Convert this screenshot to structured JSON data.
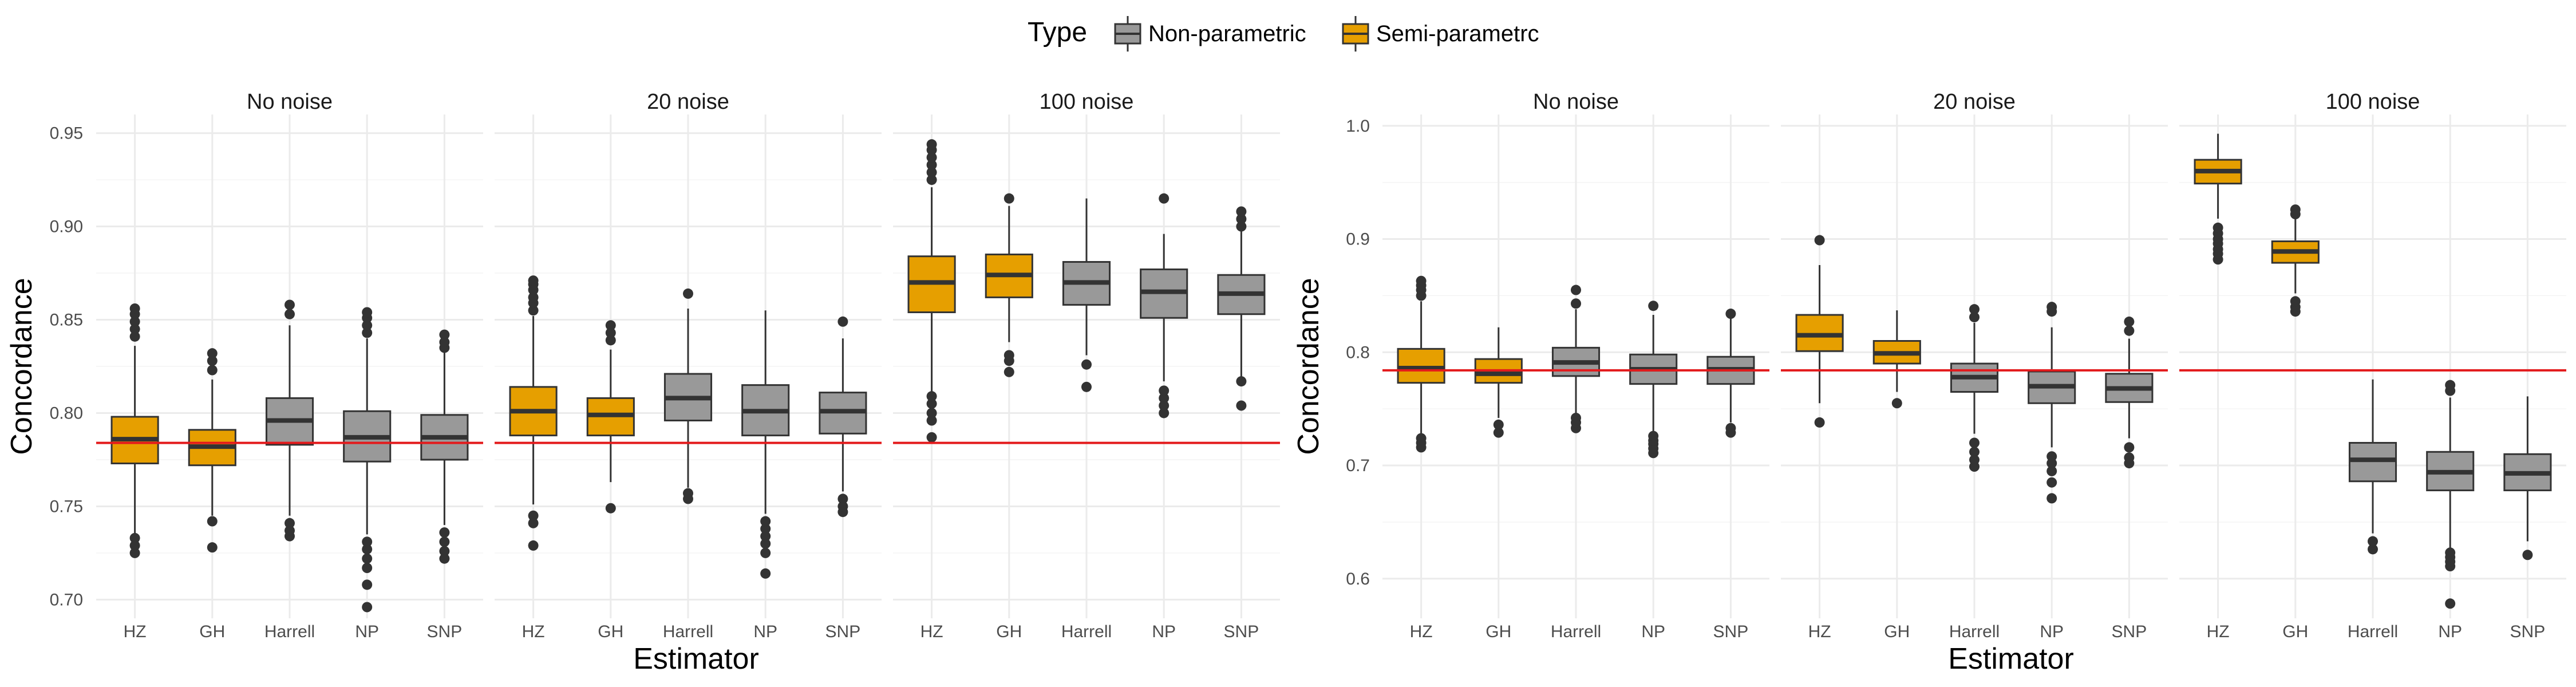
{
  "legend": {
    "title": "Type",
    "position": "top",
    "items": [
      {
        "label": "Non-parametric",
        "color": "#999999"
      },
      {
        "label": "Semi-parametrc",
        "color": "#E69F00"
      }
    ]
  },
  "colors": {
    "reference_line": "#E31A1C",
    "box_outline": "#333333",
    "grid": "#ebebeb"
  },
  "chart_data": [
    {
      "type": "boxplot",
      "xlabel": "Estimator",
      "ylabel": "Concordance",
      "ylim": [
        0.69,
        0.96
      ],
      "yticks": [
        0.7,
        0.75,
        0.8,
        0.85,
        0.9,
        0.95
      ],
      "ytick_labels": [
        "0.70",
        "0.75",
        "0.80",
        "0.85",
        "0.90",
        "0.95"
      ],
      "reference_line": 0.784,
      "grid": true,
      "categories": [
        "HZ",
        "GH",
        "Harrell",
        "NP",
        "SNP"
      ],
      "types": [
        "Semi-parametrc",
        "Semi-parametrc",
        "Non-parametric",
        "Non-parametric",
        "Non-parametric"
      ],
      "panels": [
        {
          "label": "No noise",
          "boxes": [
            {
              "q1": 0.773,
              "median": 0.786,
              "q3": 0.798,
              "lower": 0.735,
              "upper": 0.836,
              "outliers": [
                0.725,
                0.729,
                0.733,
                0.841,
                0.845,
                0.849,
                0.853,
                0.856
              ]
            },
            {
              "q1": 0.772,
              "median": 0.782,
              "q3": 0.791,
              "lower": 0.745,
              "upper": 0.818,
              "outliers": [
                0.728,
                0.742,
                0.823,
                0.828,
                0.832
              ]
            },
            {
              "q1": 0.783,
              "median": 0.796,
              "q3": 0.808,
              "lower": 0.745,
              "upper": 0.847,
              "outliers": [
                0.734,
                0.737,
                0.741,
                0.853,
                0.858
              ]
            },
            {
              "q1": 0.774,
              "median": 0.787,
              "q3": 0.801,
              "lower": 0.735,
              "upper": 0.84,
              "outliers": [
                0.696,
                0.708,
                0.717,
                0.722,
                0.727,
                0.731,
                0.843,
                0.847,
                0.851,
                0.854
              ]
            },
            {
              "q1": 0.775,
              "median": 0.787,
              "q3": 0.799,
              "lower": 0.74,
              "upper": 0.833,
              "outliers": [
                0.722,
                0.726,
                0.731,
                0.736,
                0.835,
                0.838,
                0.842
              ]
            }
          ]
        },
        {
          "label": "20 noise",
          "boxes": [
            {
              "q1": 0.788,
              "median": 0.801,
              "q3": 0.814,
              "lower": 0.751,
              "upper": 0.852,
              "outliers": [
                0.729,
                0.741,
                0.745,
                0.855,
                0.859,
                0.862,
                0.866,
                0.869,
                0.871
              ]
            },
            {
              "q1": 0.788,
              "median": 0.799,
              "q3": 0.808,
              "lower": 0.763,
              "upper": 0.834,
              "outliers": [
                0.749,
                0.839,
                0.843,
                0.847
              ]
            },
            {
              "q1": 0.796,
              "median": 0.808,
              "q3": 0.821,
              "lower": 0.76,
              "upper": 0.856,
              "outliers": [
                0.754,
                0.757,
                0.864
              ]
            },
            {
              "q1": 0.788,
              "median": 0.801,
              "q3": 0.815,
              "lower": 0.746,
              "upper": 0.855,
              "outliers": [
                0.714,
                0.725,
                0.73,
                0.734,
                0.738,
                0.742
              ]
            },
            {
              "q1": 0.789,
              "median": 0.801,
              "q3": 0.811,
              "lower": 0.758,
              "upper": 0.84,
              "outliers": [
                0.747,
                0.75,
                0.754,
                0.849
              ]
            }
          ]
        },
        {
          "label": "100 noise",
          "boxes": [
            {
              "q1": 0.854,
              "median": 0.87,
              "q3": 0.884,
              "lower": 0.811,
              "upper": 0.921,
              "outliers": [
                0.787,
                0.796,
                0.8,
                0.805,
                0.809,
                0.925,
                0.929,
                0.933,
                0.937,
                0.941,
                0.944
              ]
            },
            {
              "q1": 0.862,
              "median": 0.874,
              "q3": 0.885,
              "lower": 0.838,
              "upper": 0.911,
              "outliers": [
                0.822,
                0.828,
                0.831,
                0.915
              ]
            },
            {
              "q1": 0.858,
              "median": 0.87,
              "q3": 0.881,
              "lower": 0.831,
              "upper": 0.915,
              "outliers": [
                0.814,
                0.826
              ]
            },
            {
              "q1": 0.851,
              "median": 0.865,
              "q3": 0.877,
              "lower": 0.817,
              "upper": 0.896,
              "outliers": [
                0.8,
                0.804,
                0.808,
                0.812,
                0.915
              ]
            },
            {
              "q1": 0.853,
              "median": 0.864,
              "q3": 0.874,
              "lower": 0.818,
              "upper": 0.898,
              "outliers": [
                0.804,
                0.817,
                0.9,
                0.904,
                0.908
              ]
            }
          ]
        }
      ]
    },
    {
      "type": "boxplot",
      "xlabel": "Estimator",
      "ylabel": "Concordance",
      "ylim": [
        0.565,
        1.01
      ],
      "yticks": [
        0.6,
        0.7,
        0.8,
        0.9,
        1.0
      ],
      "ytick_labels": [
        "0.6",
        "0.7",
        "0.8",
        "0.9",
        "1.0"
      ],
      "reference_line": 0.784,
      "grid": true,
      "categories": [
        "HZ",
        "GH",
        "Harrell",
        "NP",
        "SNP"
      ],
      "types": [
        "Semi-parametrc",
        "Semi-parametrc",
        "Non-parametric",
        "Non-parametric",
        "Non-parametric"
      ],
      "panels": [
        {
          "label": "No noise",
          "boxes": [
            {
              "q1": 0.773,
              "median": 0.786,
              "q3": 0.803,
              "lower": 0.727,
              "upper": 0.845,
              "outliers": [
                0.716,
                0.72,
                0.724,
                0.85,
                0.855,
                0.859,
                0.863
              ]
            },
            {
              "q1": 0.773,
              "median": 0.781,
              "q3": 0.794,
              "lower": 0.742,
              "upper": 0.822,
              "outliers": [
                0.729,
                0.736
              ]
            },
            {
              "q1": 0.779,
              "median": 0.791,
              "q3": 0.804,
              "lower": 0.745,
              "upper": 0.838,
              "outliers": [
                0.733,
                0.738,
                0.742,
                0.843,
                0.855
              ]
            },
            {
              "q1": 0.772,
              "median": 0.785,
              "q3": 0.798,
              "lower": 0.73,
              "upper": 0.833,
              "outliers": [
                0.711,
                0.715,
                0.719,
                0.722,
                0.726,
                0.841
              ]
            },
            {
              "q1": 0.772,
              "median": 0.785,
              "q3": 0.796,
              "lower": 0.738,
              "upper": 0.83,
              "outliers": [
                0.729,
                0.733,
                0.834
              ]
            }
          ]
        },
        {
          "label": "20 noise",
          "boxes": [
            {
              "q1": 0.801,
              "median": 0.815,
              "q3": 0.833,
              "lower": 0.755,
              "upper": 0.877,
              "outliers": [
                0.738,
                0.899
              ]
            },
            {
              "q1": 0.79,
              "median": 0.799,
              "q3": 0.81,
              "lower": 0.765,
              "upper": 0.837,
              "outliers": [
                0.755
              ]
            },
            {
              "q1": 0.765,
              "median": 0.778,
              "q3": 0.79,
              "lower": 0.728,
              "upper": 0.826,
              "outliers": [
                0.699,
                0.705,
                0.712,
                0.72,
                0.831,
                0.838
              ]
            },
            {
              "q1": 0.755,
              "median": 0.77,
              "q3": 0.783,
              "lower": 0.716,
              "upper": 0.822,
              "outliers": [
                0.671,
                0.685,
                0.695,
                0.702,
                0.708,
                0.836,
                0.84
              ]
            },
            {
              "q1": 0.756,
              "median": 0.768,
              "q3": 0.781,
              "lower": 0.724,
              "upper": 0.812,
              "outliers": [
                0.702,
                0.707,
                0.716,
                0.819,
                0.827
              ]
            }
          ]
        },
        {
          "label": "100 noise",
          "boxes": [
            {
              "q1": 0.949,
              "median": 0.96,
              "q3": 0.97,
              "lower": 0.918,
              "upper": 0.993,
              "outliers": [
                0.882,
                0.887,
                0.891,
                0.896,
                0.9,
                0.905,
                0.91
              ]
            },
            {
              "q1": 0.879,
              "median": 0.889,
              "q3": 0.898,
              "lower": 0.852,
              "upper": 0.918,
              "outliers": [
                0.836,
                0.84,
                0.845,
                0.922,
                0.926
              ]
            },
            {
              "q1": 0.686,
              "median": 0.705,
              "q3": 0.72,
              "lower": 0.64,
              "upper": 0.776,
              "outliers": [
                0.626,
                0.633
              ]
            },
            {
              "q1": 0.678,
              "median": 0.694,
              "q3": 0.712,
              "lower": 0.627,
              "upper": 0.76,
              "outliers": [
                0.578,
                0.611,
                0.615,
                0.619,
                0.623,
                0.766,
                0.771
              ]
            },
            {
              "q1": 0.678,
              "median": 0.693,
              "q3": 0.71,
              "lower": 0.633,
              "upper": 0.761,
              "outliers": [
                0.621
              ]
            }
          ]
        }
      ]
    }
  ]
}
